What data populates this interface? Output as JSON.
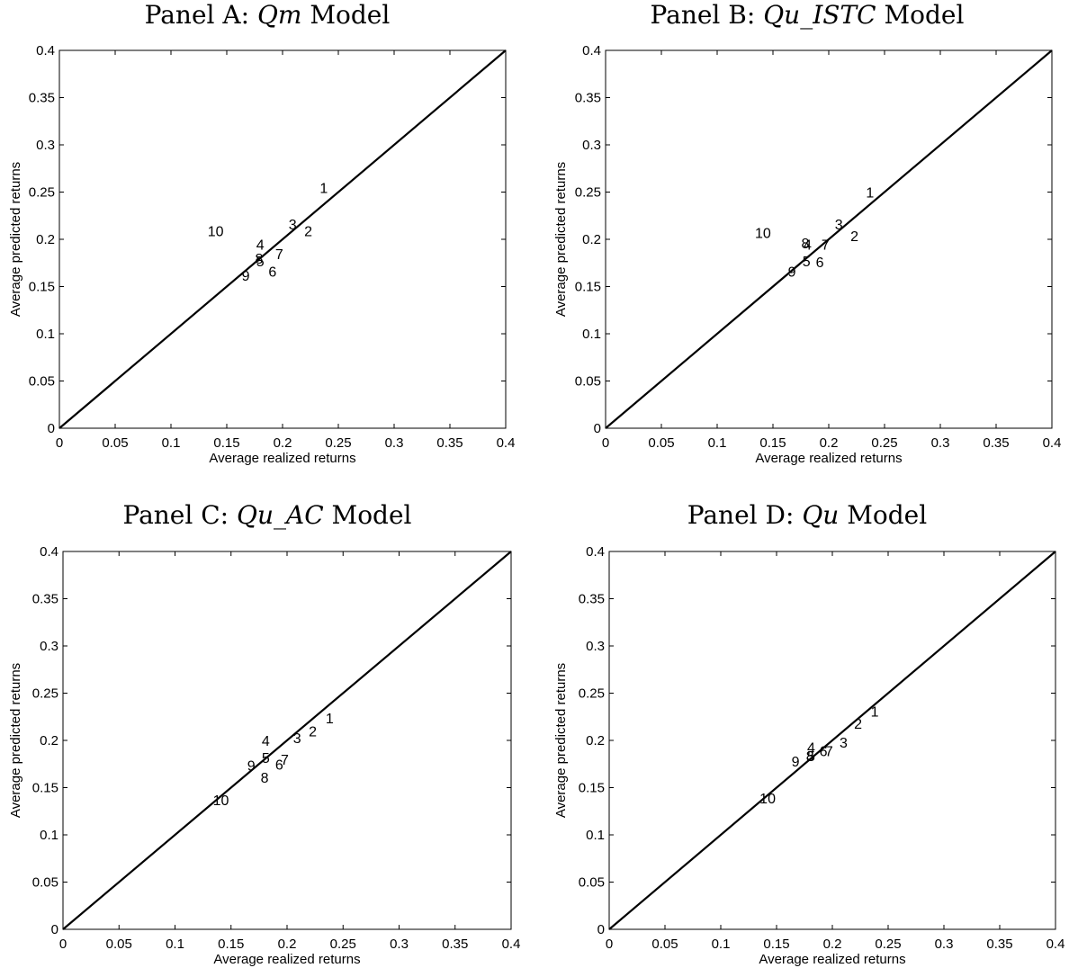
{
  "chart_data": [
    {
      "type": "scatter",
      "title_prefix": "Panel A: ",
      "title_math": "Qm",
      "title_suffix": " Model",
      "xlabel": "Average realized returns",
      "ylabel": "Average predicted returns",
      "xlim": [
        0,
        0.4
      ],
      "ylim": [
        0,
        0.4
      ],
      "ticks": [
        "0",
        "0.05",
        "0.1",
        "0.15",
        "0.2",
        "0.25",
        "0.3",
        "0.35",
        "0.4"
      ],
      "reference_line": "45-degree",
      "points": [
        {
          "label": "1",
          "x": 0.237,
          "y": 0.255
        },
        {
          "label": "2",
          "x": 0.223,
          "y": 0.209
        },
        {
          "label": "3",
          "x": 0.209,
          "y": 0.216
        },
        {
          "label": "4",
          "x": 0.18,
          "y": 0.195
        },
        {
          "label": "5",
          "x": 0.18,
          "y": 0.177
        },
        {
          "label": "6",
          "x": 0.191,
          "y": 0.166
        },
        {
          "label": "7",
          "x": 0.197,
          "y": 0.185
        },
        {
          "label": "8",
          "x": 0.179,
          "y": 0.18
        },
        {
          "label": "9",
          "x": 0.167,
          "y": 0.162
        },
        {
          "label": "10",
          "x": 0.14,
          "y": 0.209
        }
      ]
    },
    {
      "type": "scatter",
      "title_prefix": "Panel B: ",
      "title_math": "Qu_ISTC",
      "title_suffix": " Model",
      "xlabel": "Average realized returns",
      "ylabel": "Average predicted returns",
      "xlim": [
        0,
        0.4
      ],
      "ylim": [
        0,
        0.4
      ],
      "ticks": [
        "0",
        "0.05",
        "0.1",
        "0.15",
        "0.2",
        "0.25",
        "0.3",
        "0.35",
        "0.4"
      ],
      "reference_line": "45-degree",
      "points": [
        {
          "label": "1",
          "x": 0.237,
          "y": 0.25
        },
        {
          "label": "2",
          "x": 0.223,
          "y": 0.204
        },
        {
          "label": "3",
          "x": 0.209,
          "y": 0.216
        },
        {
          "label": "4",
          "x": 0.181,
          "y": 0.195
        },
        {
          "label": "5",
          "x": 0.18,
          "y": 0.177
        },
        {
          "label": "6",
          "x": 0.192,
          "y": 0.176
        },
        {
          "label": "7",
          "x": 0.197,
          "y": 0.195
        },
        {
          "label": "8",
          "x": 0.179,
          "y": 0.196
        },
        {
          "label": "9",
          "x": 0.167,
          "y": 0.166
        },
        {
          "label": "10",
          "x": 0.141,
          "y": 0.207
        }
      ]
    },
    {
      "type": "scatter",
      "title_prefix": "Panel C: ",
      "title_math": "Qu_AC",
      "title_suffix": " Model",
      "xlabel": "Average realized returns",
      "ylabel": "Average predicted returns",
      "xlim": [
        0,
        0.4
      ],
      "ylim": [
        0,
        0.4
      ],
      "ticks": [
        "0",
        "0.05",
        "0.1",
        "0.15",
        "0.2",
        "0.25",
        "0.3",
        "0.35",
        "0.4"
      ],
      "reference_line": "45-degree",
      "points": [
        {
          "label": "1",
          "x": 0.238,
          "y": 0.224
        },
        {
          "label": "2",
          "x": 0.223,
          "y": 0.21
        },
        {
          "label": "3",
          "x": 0.209,
          "y": 0.203
        },
        {
          "label": "4",
          "x": 0.181,
          "y": 0.2
        },
        {
          "label": "5",
          "x": 0.181,
          "y": 0.182
        },
        {
          "label": "6",
          "x": 0.193,
          "y": 0.175
        },
        {
          "label": "7",
          "x": 0.198,
          "y": 0.18
        },
        {
          "label": "8",
          "x": 0.18,
          "y": 0.161
        },
        {
          "label": "9",
          "x": 0.168,
          "y": 0.174
        },
        {
          "label": "10",
          "x": 0.141,
          "y": 0.137
        }
      ]
    },
    {
      "type": "scatter",
      "title_prefix": "Panel D: ",
      "title_math": "Qu",
      "title_suffix": " Model",
      "xlabel": "Average realized returns",
      "ylabel": "Average predicted returns",
      "xlim": [
        0,
        0.4
      ],
      "ylim": [
        0,
        0.4
      ],
      "ticks": [
        "0",
        "0.05",
        "0.1",
        "0.15",
        "0.2",
        "0.25",
        "0.3",
        "0.35",
        "0.4"
      ],
      "reference_line": "45-degree",
      "points": [
        {
          "label": "1",
          "x": 0.238,
          "y": 0.231
        },
        {
          "label": "2",
          "x": 0.223,
          "y": 0.218
        },
        {
          "label": "3",
          "x": 0.21,
          "y": 0.198
        },
        {
          "label": "4",
          "x": 0.181,
          "y": 0.193
        },
        {
          "label": "5",
          "x": 0.181,
          "y": 0.184
        },
        {
          "label": "6",
          "x": 0.192,
          "y": 0.189
        },
        {
          "label": "7",
          "x": 0.197,
          "y": 0.189
        },
        {
          "label": "8",
          "x": 0.18,
          "y": 0.184
        },
        {
          "label": "9",
          "x": 0.167,
          "y": 0.178
        },
        {
          "label": "10",
          "x": 0.142,
          "y": 0.139
        }
      ]
    }
  ]
}
